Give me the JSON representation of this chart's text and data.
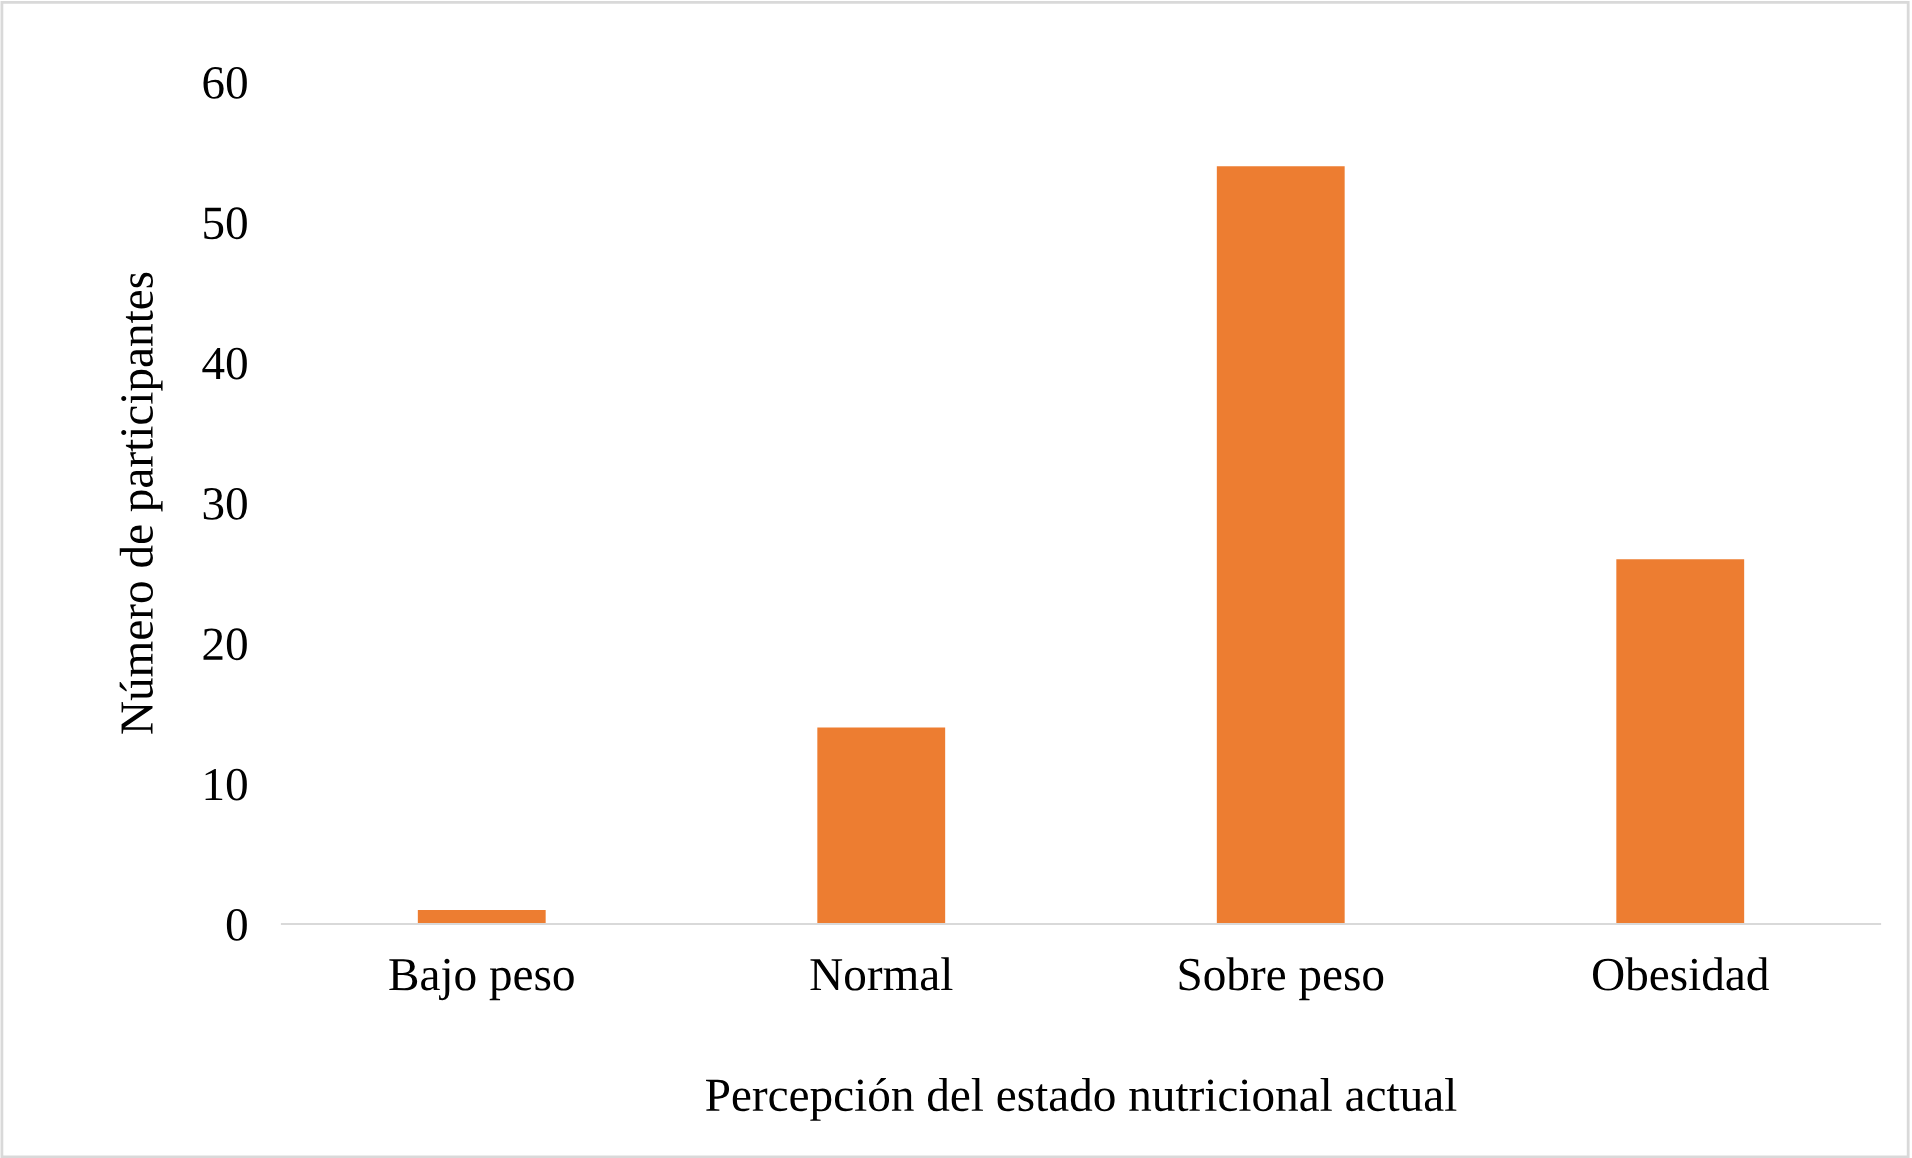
{
  "chart_data": {
    "type": "bar",
    "xlabel": "Percepción del estado nutricional actual",
    "ylabel": "Número de participantes",
    "categories": [
      "Bajo peso",
      "Normal",
      "Sobre peso",
      "Obesidad"
    ],
    "values": [
      1,
      14,
      54,
      26
    ],
    "color": "#ed7d31",
    "ylim": [
      0,
      60
    ],
    "yticks": [
      0,
      10,
      20,
      30,
      40,
      50,
      60
    ],
    "grid": false
  }
}
